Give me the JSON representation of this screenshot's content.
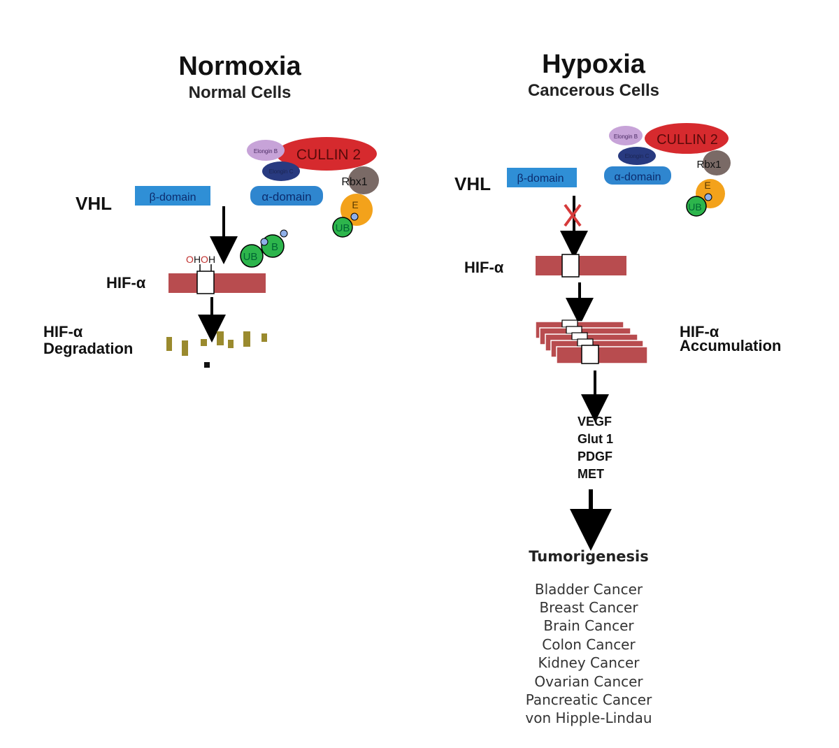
{
  "normoxia": {
    "title": "Normoxia",
    "subtitle": "Normal Cells",
    "vhl_label": "VHL",
    "beta_domain": "β-domain",
    "alpha_domain": "α-domain",
    "elongin_b": "Elongin B",
    "elongin_c": "Elongin C",
    "cullin": "CULLIN 2",
    "rbx1": "Rbx1",
    "e_label": "E",
    "ub_label": "UB",
    "oh_label_1": "OH",
    "oh_label_2": "OH",
    "hif_label": "HIF-α",
    "degradation_line1": "HIF-α",
    "degradation_line2": "Degradation"
  },
  "hypoxia": {
    "title": "Hypoxia",
    "subtitle": "Cancerous Cells",
    "vhl_label": "VHL",
    "beta_domain": "β-domain",
    "alpha_domain": "α-domain",
    "elongin_b": "Elongin B",
    "elongin_c": "Elongin C",
    "cullin": "CULLIN 2",
    "rbx1": "Rbx1",
    "e_label": "E",
    "ub_label": "UB",
    "hif_label": "HIF-α",
    "accumulation_line1": "HIF-α",
    "accumulation_line2": "Accumulation",
    "targets": [
      "VEGF",
      "Glut 1",
      "PDGF",
      "MET"
    ],
    "tumorigenesis": "Tumorigenesis",
    "cancers": [
      "Bladder Cancer",
      "Breast Cancer",
      "Brain Cancer",
      "Colon Cancer",
      "Kidney Cancer",
      "Ovarian Cancer",
      "Pancreatic Cancer",
      "von Hipple-Lindau"
    ]
  },
  "colors": {
    "beta_domain": "#2f8fd6",
    "alpha_domain": "#2f86cf",
    "cullin": "#d62a2e",
    "elongin_b": "#c7a3d8",
    "elongin_c": "#283a80",
    "rbx1": "#7a6a66",
    "e_protein": "#f3a21b",
    "ub": "#2db54c",
    "hif_bar": "#b84c4f",
    "fragments": "#9a8a2e",
    "block_x": "#d63a3a"
  },
  "icons": {
    "blocked_arrow": "x-mark-icon",
    "flow_arrow": "arrow-down-icon"
  }
}
